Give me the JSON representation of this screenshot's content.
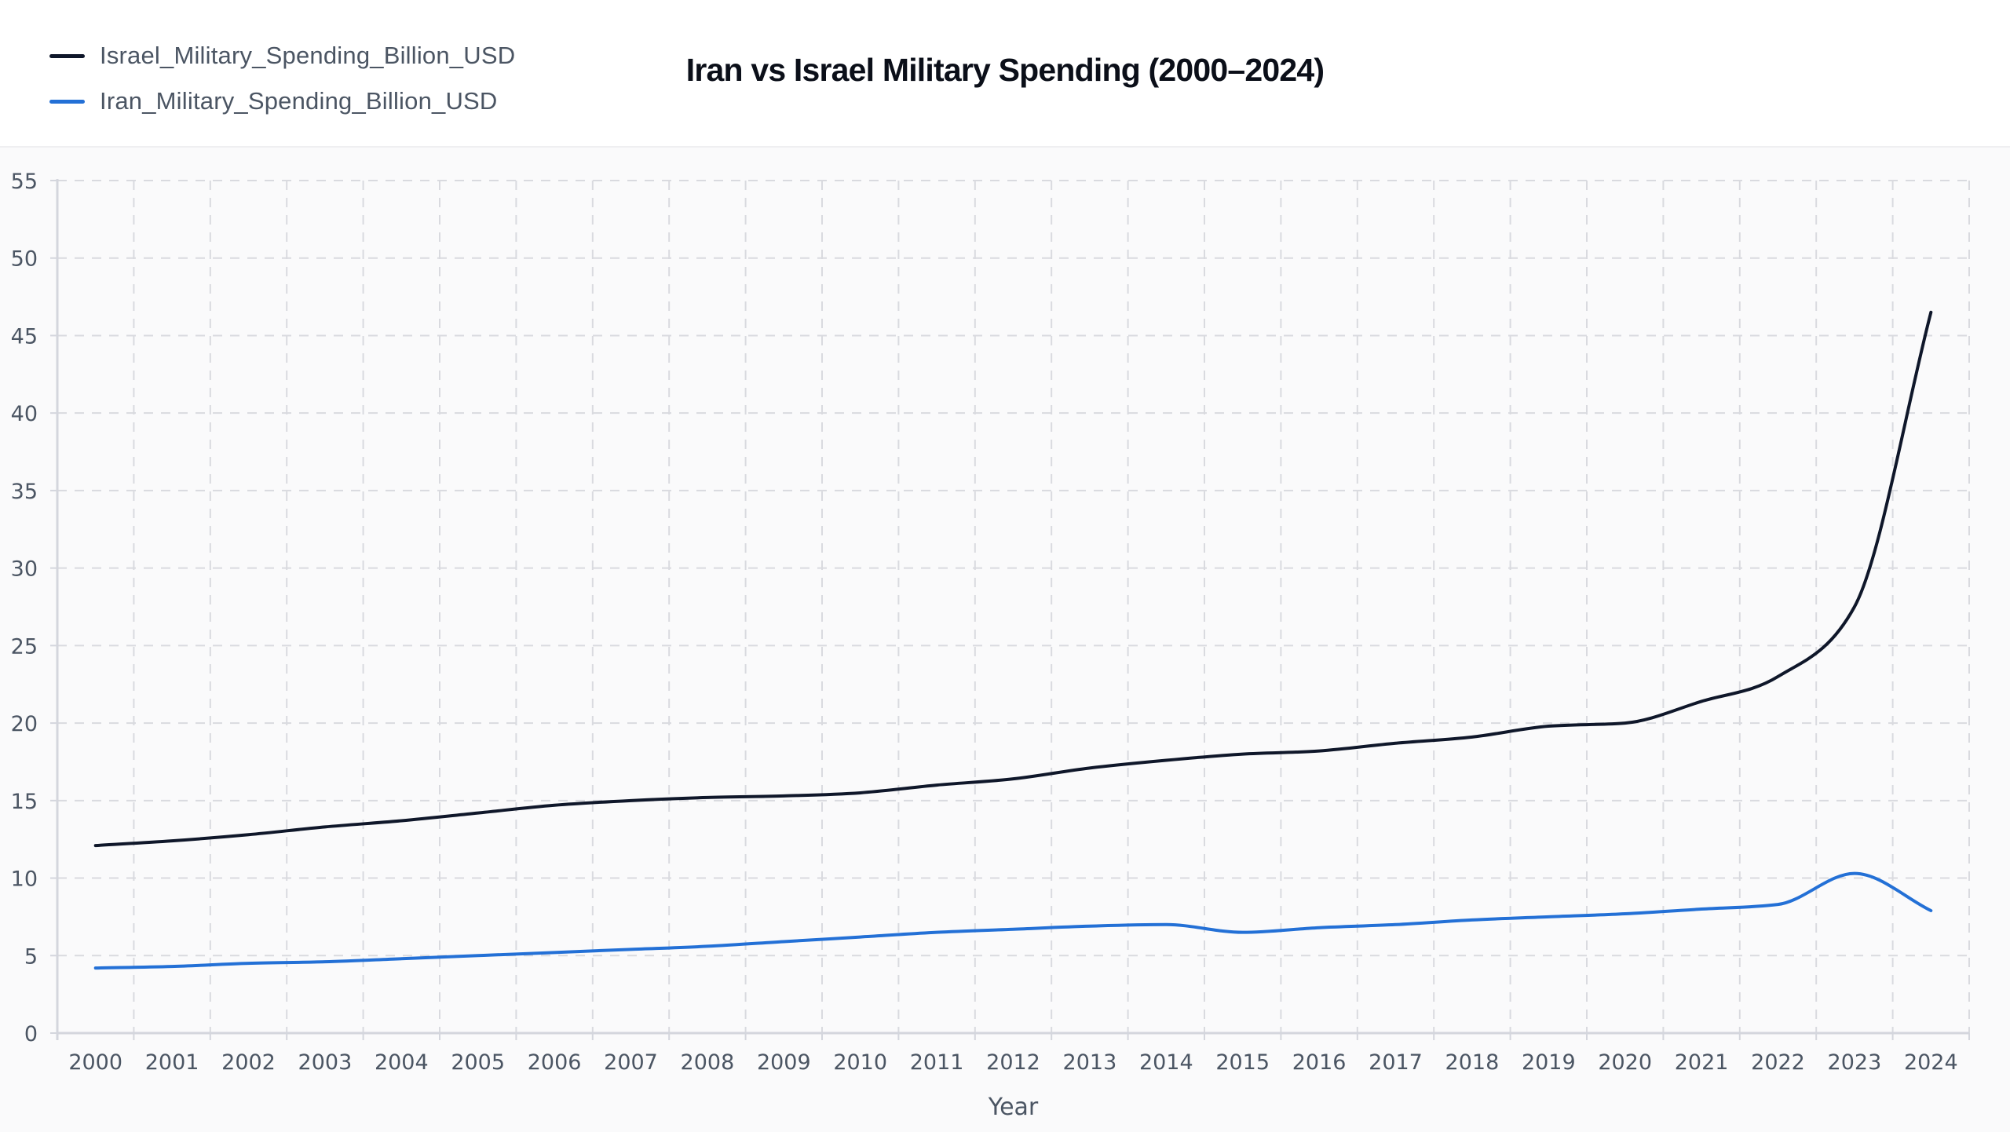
{
  "chart_data": {
    "type": "line",
    "title": "Iran vs Israel Military Spending (2000–2024)",
    "xlabel": "Year",
    "ylabel": "",
    "categories": [
      "2000",
      "2001",
      "2002",
      "2003",
      "2004",
      "2005",
      "2006",
      "2007",
      "2008",
      "2009",
      "2010",
      "2011",
      "2012",
      "2013",
      "2014",
      "2015",
      "2016",
      "2017",
      "2018",
      "2019",
      "2020",
      "2021",
      "2022",
      "2023",
      "2024"
    ],
    "yticks": [
      0,
      5,
      10,
      15,
      20,
      25,
      30,
      35,
      40,
      45,
      50,
      55
    ],
    "ylim": [
      0,
      55
    ],
    "grid": true,
    "legend_position": "top-left",
    "series": [
      {
        "name": "Israel_Military_Spending_Billion_USD",
        "color": "#0f172a",
        "values": [
          12.1,
          12.4,
          12.8,
          13.3,
          13.7,
          14.2,
          14.7,
          15.0,
          15.2,
          15.3,
          15.5,
          16.0,
          16.4,
          17.1,
          17.6,
          18.0,
          18.2,
          18.7,
          19.1,
          19.8,
          20.0,
          21.4,
          23.0,
          27.5,
          46.5
        ]
      },
      {
        "name": "Iran_Military_Spending_Billion_USD",
        "color": "#2370d6",
        "values": [
          4.2,
          4.3,
          4.5,
          4.6,
          4.8,
          5.0,
          5.2,
          5.4,
          5.6,
          5.9,
          6.2,
          6.5,
          6.7,
          6.9,
          7.0,
          6.5,
          6.8,
          7.0,
          7.3,
          7.5,
          7.7,
          8.0,
          8.3,
          10.3,
          7.9
        ]
      }
    ]
  }
}
